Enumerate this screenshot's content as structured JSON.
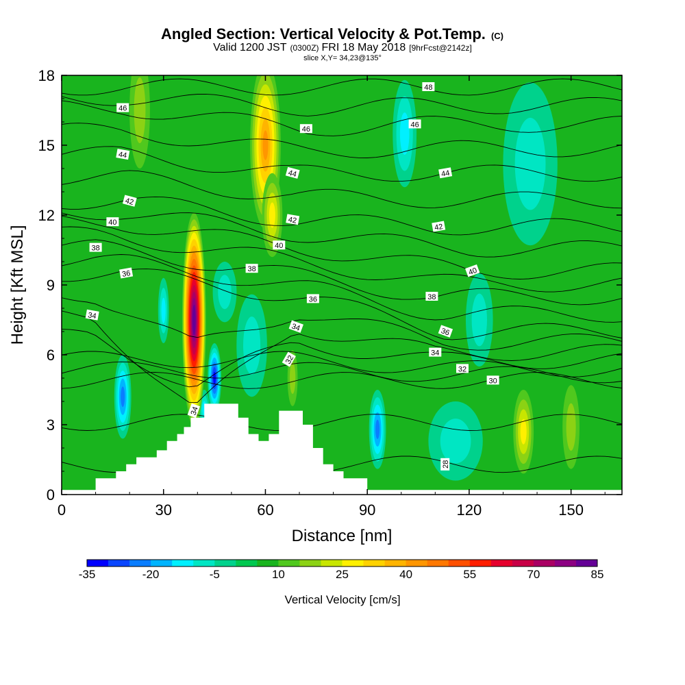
{
  "header": {
    "title_main": "Angled Section: Vertical Velocity & Pot.Temp.",
    "title_unit": "(C)",
    "valid_prefix": "Valid 1200 JST",
    "valid_utc": "(0300Z)",
    "valid_date": "FRI 18 May 2018",
    "forecast": "[9hrFcst@2142z]",
    "slice": "slice X,Y= 34,23@135°"
  },
  "chart_data": {
    "type": "heatmap",
    "xlabel": "Distance [nm]",
    "ylabel": "Height [Kft MSL]",
    "xlim": [
      0,
      165
    ],
    "ylim": [
      0,
      18
    ],
    "x_ticks": [
      0,
      30,
      60,
      90,
      120,
      150
    ],
    "y_ticks": [
      0,
      3,
      6,
      9,
      12,
      15,
      18
    ],
    "colorbar": {
      "title": "Vertical Velocity [cm/s]",
      "min": -35,
      "max": 85,
      "step": 5,
      "tick_labels": [
        -35,
        -20,
        -5,
        10,
        25,
        40,
        55,
        70,
        85
      ],
      "colors": [
        "#0000ff",
        "#0a46ff",
        "#0a7dff",
        "#00b4ff",
        "#00f0ff",
        "#00e6c3",
        "#00d28c",
        "#00c850",
        "#19b41e",
        "#50c81e",
        "#8cd214",
        "#c8e600",
        "#fff000",
        "#ffd200",
        "#ffb400",
        "#ff9600",
        "#ff7800",
        "#ff5000",
        "#ff1e00",
        "#e6002d",
        "#c80046",
        "#aa0064",
        "#8c0082",
        "#640096"
      ]
    },
    "terrain_profile": [
      [
        0,
        0.2
      ],
      [
        10,
        0.2
      ],
      [
        10,
        0.7
      ],
      [
        16,
        0.7
      ],
      [
        16,
        1.0
      ],
      [
        19,
        1.0
      ],
      [
        19,
        1.3
      ],
      [
        22,
        1.3
      ],
      [
        22,
        1.6
      ],
      [
        28,
        1.6
      ],
      [
        28,
        1.9
      ],
      [
        31,
        1.9
      ],
      [
        31,
        2.3
      ],
      [
        34,
        2.3
      ],
      [
        34,
        2.6
      ],
      [
        36,
        2.6
      ],
      [
        36,
        2.9
      ],
      [
        38,
        2.9
      ],
      [
        38,
        3.3
      ],
      [
        42,
        3.3
      ],
      [
        42,
        3.9
      ],
      [
        52,
        3.9
      ],
      [
        52,
        3.3
      ],
      [
        55,
        3.3
      ],
      [
        55,
        2.6
      ],
      [
        58,
        2.6
      ],
      [
        58,
        2.3
      ],
      [
        61,
        2.3
      ],
      [
        61,
        2.6
      ],
      [
        64,
        2.6
      ],
      [
        64,
        3.6
      ],
      [
        71,
        3.6
      ],
      [
        71,
        3.0
      ],
      [
        74,
        3.0
      ],
      [
        74,
        2.0
      ],
      [
        77,
        2.0
      ],
      [
        77,
        1.3
      ],
      [
        80,
        1.3
      ],
      [
        80,
        1.0
      ],
      [
        83,
        1.0
      ],
      [
        83,
        0.7
      ],
      [
        90,
        0.7
      ],
      [
        90,
        0.2
      ],
      [
        165,
        0.2
      ]
    ],
    "updrafts": [
      {
        "x": 39,
        "y": 7.5,
        "rx": 3.5,
        "ry": 4.6,
        "peak": 85
      },
      {
        "x": 60,
        "y": 15,
        "rx": 4.5,
        "ry": 3.6,
        "peak": 40
      },
      {
        "x": 62,
        "y": 12.0,
        "rx": 3.0,
        "ry": 1.8,
        "peak": 25
      },
      {
        "x": 23,
        "y": 16.5,
        "rx": 3,
        "ry": 2.5,
        "peak": 15
      },
      {
        "x": 136,
        "y": 2.7,
        "rx": 3,
        "ry": 1.8,
        "peak": 25
      },
      {
        "x": 150,
        "y": 2.9,
        "rx": 2.5,
        "ry": 1.8,
        "peak": 15
      },
      {
        "x": 68,
        "y": 5.0,
        "rx": 1.5,
        "ry": 1.2,
        "peak": 15
      }
    ],
    "downdrafts": [
      {
        "x": 18,
        "y": 4.2,
        "rx": 2.5,
        "ry": 1.8,
        "peak": -20
      },
      {
        "x": 93,
        "y": 2.8,
        "rx": 2.5,
        "ry": 1.7,
        "peak": -20
      },
      {
        "x": 45,
        "y": 5.0,
        "rx": 2.0,
        "ry": 1.5,
        "peak": -30
      },
      {
        "x": 56,
        "y": 6.4,
        "rx": 4.5,
        "ry": 2.2,
        "peak": -5
      },
      {
        "x": 48,
        "y": 8.7,
        "rx": 3.5,
        "ry": 1.3,
        "peak": -5
      },
      {
        "x": 42,
        "y": 3.7,
        "rx": 1.5,
        "ry": 0.8,
        "peak": -10
      },
      {
        "x": 30,
        "y": 7.9,
        "rx": 1.6,
        "ry": 1.4,
        "peak": -10
      },
      {
        "x": 101,
        "y": 15.5,
        "rx": 3.5,
        "ry": 2.3,
        "peak": -10
      },
      {
        "x": 138,
        "y": 14.2,
        "rx": 8,
        "ry": 3.5,
        "peak": -5
      },
      {
        "x": 116,
        "y": 2.3,
        "rx": 8,
        "ry": 1.7,
        "peak": -5
      },
      {
        "x": 123,
        "y": 7.5,
        "rx": 4,
        "ry": 2.0,
        "peak": -5
      }
    ],
    "theta_contours": [
      {
        "value": 28,
        "label_x": 113,
        "label_y": 1.3,
        "rotate": -90
      },
      {
        "value": 30,
        "label_x": 127,
        "label_y": 4.9,
        "rotate": 0
      },
      {
        "value": 32,
        "label_x": 67,
        "label_y": 5.8,
        "rotate": -60
      },
      {
        "value": 32,
        "label_x": 118,
        "label_y": 5.4,
        "rotate": 0
      },
      {
        "value": 34,
        "label_x": 9,
        "label_y": 7.7,
        "rotate": 10
      },
      {
        "value": 34,
        "label_x": 39,
        "label_y": 3.6,
        "rotate": -70
      },
      {
        "value": 34,
        "label_x": 69,
        "label_y": 7.2,
        "rotate": 20
      },
      {
        "value": 34,
        "label_x": 110,
        "label_y": 6.1,
        "rotate": 0
      },
      {
        "value": 36,
        "label_x": 19,
        "label_y": 9.5,
        "rotate": -10
      },
      {
        "value": 36,
        "label_x": 74,
        "label_y": 8.4,
        "rotate": 0
      },
      {
        "value": 36,
        "label_x": 113,
        "label_y": 7.0,
        "rotate": 20
      },
      {
        "value": 38,
        "label_x": 10,
        "label_y": 10.6,
        "rotate": 0
      },
      {
        "value": 38,
        "label_x": 56,
        "label_y": 9.7,
        "rotate": 0
      },
      {
        "value": 38,
        "label_x": 109,
        "label_y": 8.5,
        "rotate": 0
      },
      {
        "value": 40,
        "label_x": 15,
        "label_y": 11.7,
        "rotate": 0
      },
      {
        "value": 40,
        "label_x": 64,
        "label_y": 10.7,
        "rotate": 0
      },
      {
        "value": 40,
        "label_x": 121,
        "label_y": 9.6,
        "rotate": -20
      },
      {
        "value": 42,
        "label_x": 20,
        "label_y": 12.6,
        "rotate": 15
      },
      {
        "value": 42,
        "label_x": 68,
        "label_y": 11.8,
        "rotate": 10
      },
      {
        "value": 42,
        "label_x": 111,
        "label_y": 11.5,
        "rotate": -10
      },
      {
        "value": 44,
        "label_x": 18,
        "label_y": 14.6,
        "rotate": 10
      },
      {
        "value": 44,
        "label_x": 68,
        "label_y": 13.8,
        "rotate": 15
      },
      {
        "value": 44,
        "label_x": 113,
        "label_y": 13.8,
        "rotate": -10
      },
      {
        "value": 46,
        "label_x": 18,
        "label_y": 16.6,
        "rotate": 0
      },
      {
        "value": 46,
        "label_x": 72,
        "label_y": 15.7,
        "rotate": 0
      },
      {
        "value": 46,
        "label_x": 104,
        "label_y": 15.9,
        "rotate": 0
      },
      {
        "value": 48,
        "label_x": 108,
        "label_y": 17.5,
        "rotate": 0
      }
    ]
  }
}
